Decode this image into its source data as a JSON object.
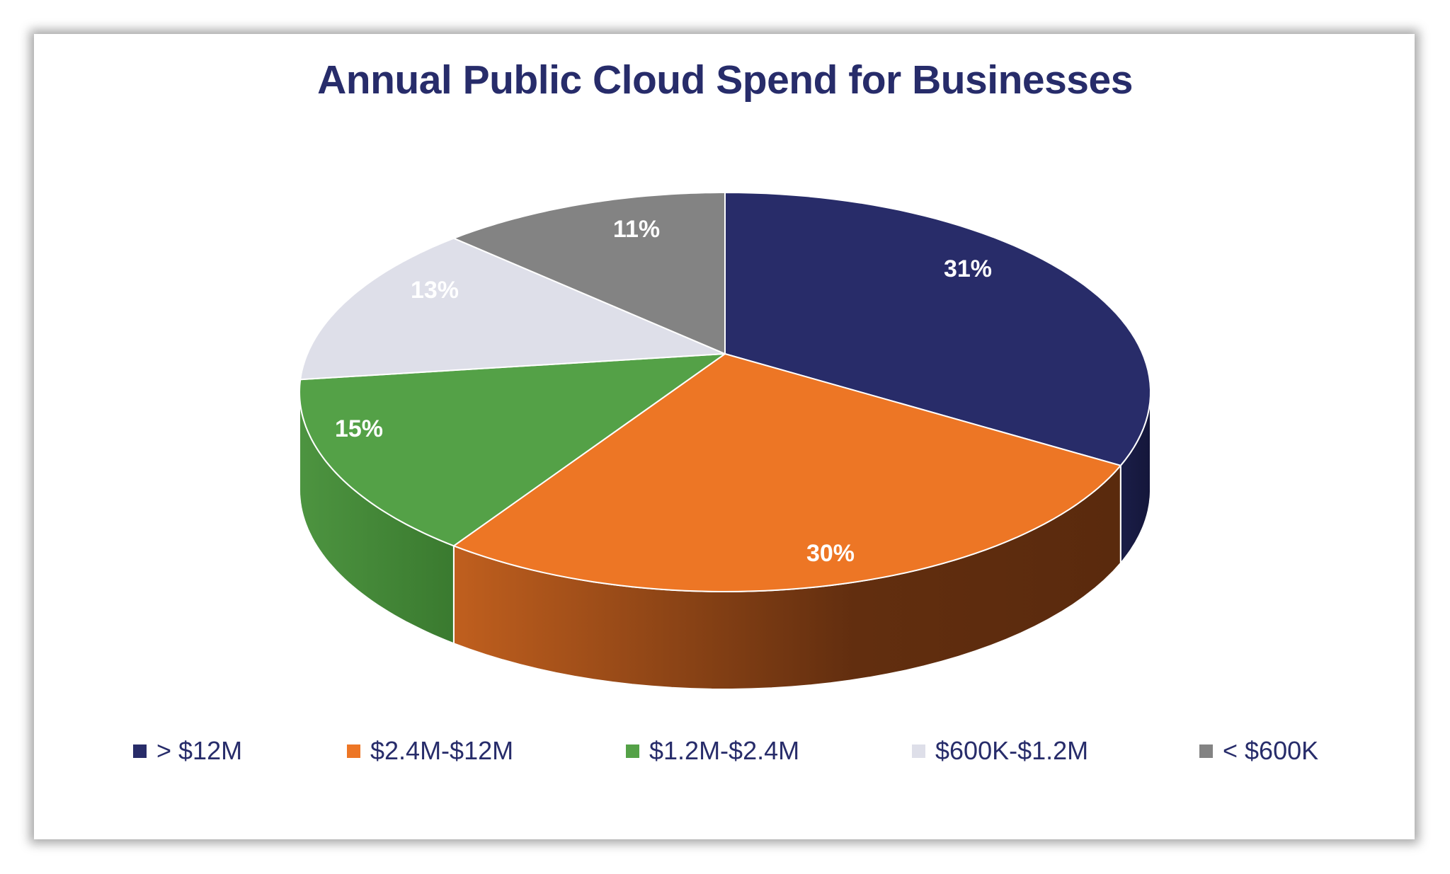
{
  "chart_data": {
    "type": "pie",
    "style": "3d",
    "title": "Annual Public Cloud Spend for Businesses",
    "categories": [
      "> $12M",
      "$2.4M-$12M",
      "$1.2M-$2.4M",
      "$600K-$1.2M",
      "< $600K"
    ],
    "values": [
      31,
      30,
      15,
      13,
      11
    ],
    "labels": [
      "31%",
      "30%",
      "15%",
      "13%",
      "11%"
    ],
    "colors": [
      "#282c69",
      "#ed7625",
      "#54a147",
      "#dedfe9",
      "#838383"
    ],
    "legend_placement": "bottom"
  }
}
